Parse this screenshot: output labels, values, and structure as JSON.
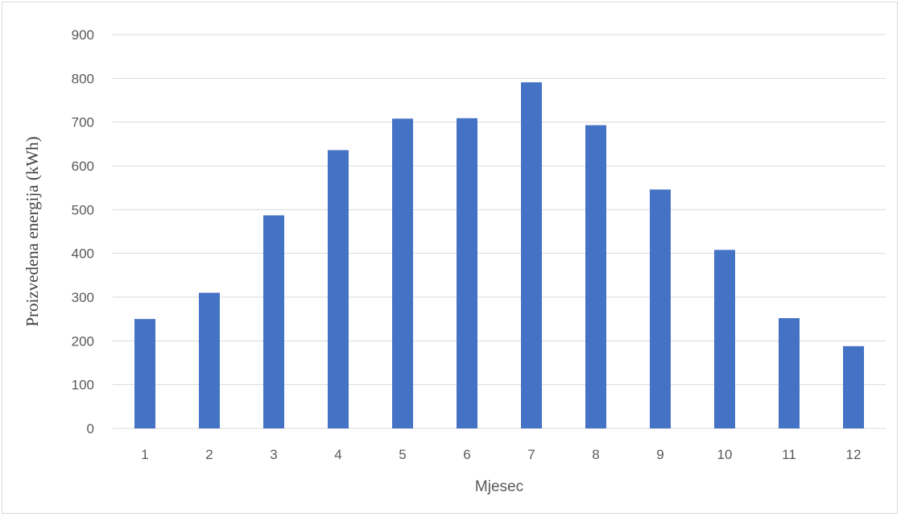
{
  "chart_data": {
    "type": "bar",
    "title": "",
    "xlabel": "Mjesec",
    "ylabel": "Proizvedena energija (kWh)",
    "categories": [
      "1",
      "2",
      "3",
      "4",
      "5",
      "6",
      "7",
      "8",
      "9",
      "10",
      "11",
      "12"
    ],
    "series": [
      {
        "values": [
          250,
          310,
          487,
          636,
          708,
          709,
          791,
          693,
          546,
          408,
          252,
          188
        ],
        "color": "#4472c4"
      }
    ],
    "ylim": [
      0,
      900
    ],
    "yticks": [
      "0",
      "100",
      "200",
      "300",
      "400",
      "500",
      "600",
      "700",
      "800",
      "900"
    ],
    "grid": true,
    "legend": "none",
    "colors": {
      "bar": "#4472c4",
      "grid": "#d9d9d9",
      "text": "#595959"
    }
  }
}
